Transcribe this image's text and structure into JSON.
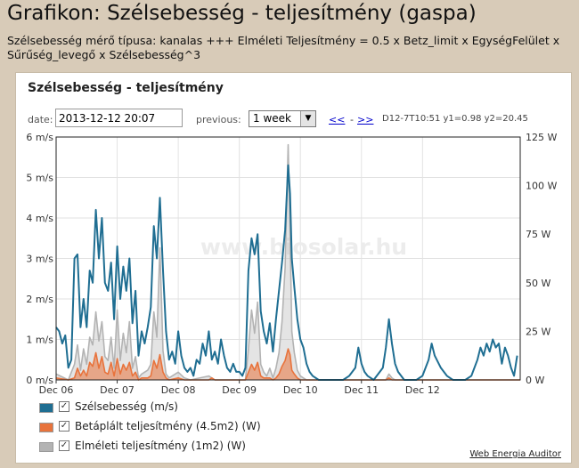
{
  "page": {
    "title": "Grafikon: Szélsebesség - teljesítmény (gaspa)",
    "description": "Szélsebesség mérő típusa: kanalas +++ Elméleti Teljesítmény = 0.5 x Betz_limit x EgységFelület x Sűrűség_levegő x Szélsebesség^3"
  },
  "panel": {
    "title": "Szélsebesség - teljesítmény"
  },
  "controls": {
    "date_label": "date:",
    "date_value": "2013-12-12 20:07",
    "previous_label": "previous:",
    "previous_value": "1 week",
    "prev_link": "<<",
    "separator": "-",
    "next_link": ">>",
    "readout": "D12-7T10:51 y1=0.98 y2=20.45"
  },
  "watermark": "www.biosolar.hu",
  "footer": {
    "link": "Web Energia Auditor"
  },
  "chart_data": {
    "type": "line",
    "y_left": {
      "label": "",
      "min": 0,
      "max": 6,
      "ticks": [
        "0 m/s",
        "1 m/s",
        "2 m/s",
        "3 m/s",
        "4 m/s",
        "5 m/s",
        "6 m/s"
      ]
    },
    "y_right": {
      "label": "",
      "min": 0,
      "max": 125,
      "ticks": [
        "0 W",
        "25 W",
        "50 W",
        "75 W",
        "100 W",
        "125 W"
      ]
    },
    "x_labels": [
      "Dec 06",
      "Dec 07",
      "Dec 08",
      "Dec 09",
      "Dec 10",
      "Dec 11",
      "Dec 12"
    ],
    "x_range": [
      0,
      7.6
    ],
    "grid": true,
    "legend_position": "bottom",
    "series": [
      {
        "name": "Szélsebesség (m/s)",
        "color": "#1f6e92",
        "axis": "left",
        "points": [
          [
            0.0,
            1.3
          ],
          [
            0.05,
            1.2
          ],
          [
            0.1,
            0.9
          ],
          [
            0.15,
            1.1
          ],
          [
            0.2,
            0.3
          ],
          [
            0.25,
            0.5
          ],
          [
            0.3,
            3.0
          ],
          [
            0.35,
            3.1
          ],
          [
            0.4,
            1.3
          ],
          [
            0.45,
            2.0
          ],
          [
            0.5,
            1.3
          ],
          [
            0.55,
            2.7
          ],
          [
            0.6,
            2.4
          ],
          [
            0.65,
            4.2
          ],
          [
            0.7,
            3.0
          ],
          [
            0.75,
            4.0
          ],
          [
            0.8,
            2.4
          ],
          [
            0.85,
            2.2
          ],
          [
            0.9,
            2.9
          ],
          [
            0.95,
            1.5
          ],
          [
            1.0,
            3.3
          ],
          [
            1.05,
            2.0
          ],
          [
            1.1,
            2.8
          ],
          [
            1.15,
            2.2
          ],
          [
            1.2,
            3.0
          ],
          [
            1.25,
            1.4
          ],
          [
            1.3,
            2.2
          ],
          [
            1.35,
            0.6
          ],
          [
            1.4,
            1.2
          ],
          [
            1.45,
            0.9
          ],
          [
            1.5,
            1.3
          ],
          [
            1.55,
            1.8
          ],
          [
            1.6,
            3.8
          ],
          [
            1.65,
            3.0
          ],
          [
            1.7,
            4.5
          ],
          [
            1.75,
            2.7
          ],
          [
            1.8,
            1.2
          ],
          [
            1.85,
            0.5
          ],
          [
            1.9,
            0.7
          ],
          [
            1.95,
            0.4
          ],
          [
            2.0,
            1.2
          ],
          [
            2.05,
            0.6
          ],
          [
            2.1,
            0.3
          ],
          [
            2.15,
            0.2
          ],
          [
            2.2,
            0.3
          ],
          [
            2.25,
            0.1
          ],
          [
            2.3,
            0.5
          ],
          [
            2.35,
            0.4
          ],
          [
            2.4,
            0.9
          ],
          [
            2.45,
            0.6
          ],
          [
            2.5,
            1.2
          ],
          [
            2.55,
            0.5
          ],
          [
            2.6,
            0.7
          ],
          [
            2.65,
            0.4
          ],
          [
            2.7,
            1.0
          ],
          [
            2.75,
            0.6
          ],
          [
            2.8,
            0.3
          ],
          [
            2.85,
            0.2
          ],
          [
            2.9,
            0.4
          ],
          [
            2.95,
            0.2
          ],
          [
            3.0,
            0.2
          ],
          [
            3.05,
            0.1
          ],
          [
            3.1,
            0.3
          ],
          [
            3.15,
            2.7
          ],
          [
            3.2,
            3.5
          ],
          [
            3.25,
            3.1
          ],
          [
            3.3,
            3.6
          ],
          [
            3.35,
            1.7
          ],
          [
            3.4,
            1.2
          ],
          [
            3.45,
            0.9
          ],
          [
            3.5,
            1.4
          ],
          [
            3.55,
            0.7
          ],
          [
            3.6,
            1.5
          ],
          [
            3.65,
            2.2
          ],
          [
            3.7,
            2.9
          ],
          [
            3.75,
            3.7
          ],
          [
            3.8,
            5.3
          ],
          [
            3.83,
            4.6
          ],
          [
            3.86,
            3.0
          ],
          [
            3.9,
            2.3
          ],
          [
            3.95,
            1.5
          ],
          [
            4.0,
            1.0
          ],
          [
            4.05,
            0.8
          ],
          [
            4.1,
            0.4
          ],
          [
            4.15,
            0.2
          ],
          [
            4.2,
            0.1
          ],
          [
            4.3,
            0.0
          ],
          [
            4.5,
            0.0
          ],
          [
            4.7,
            0.0
          ],
          [
            4.8,
            0.1
          ],
          [
            4.9,
            0.3
          ],
          [
            4.95,
            0.8
          ],
          [
            5.0,
            0.4
          ],
          [
            5.05,
            0.2
          ],
          [
            5.1,
            0.1
          ],
          [
            5.2,
            0.0
          ],
          [
            5.35,
            0.3
          ],
          [
            5.4,
            0.8
          ],
          [
            5.45,
            1.5
          ],
          [
            5.5,
            0.9
          ],
          [
            5.55,
            0.4
          ],
          [
            5.6,
            0.2
          ],
          [
            5.7,
            0.0
          ],
          [
            5.9,
            0.0
          ],
          [
            6.0,
            0.1
          ],
          [
            6.1,
            0.5
          ],
          [
            6.15,
            0.9
          ],
          [
            6.2,
            0.6
          ],
          [
            6.3,
            0.3
          ],
          [
            6.4,
            0.1
          ],
          [
            6.5,
            0.0
          ],
          [
            6.7,
            0.0
          ],
          [
            6.8,
            0.1
          ],
          [
            6.9,
            0.5
          ],
          [
            6.95,
            0.8
          ],
          [
            7.0,
            0.6
          ],
          [
            7.05,
            0.9
          ],
          [
            7.1,
            0.7
          ],
          [
            7.15,
            1.0
          ],
          [
            7.2,
            0.8
          ],
          [
            7.25,
            0.9
          ],
          [
            7.3,
            0.4
          ],
          [
            7.35,
            0.8
          ],
          [
            7.4,
            0.6
          ],
          [
            7.45,
            0.3
          ],
          [
            7.5,
            0.1
          ],
          [
            7.55,
            0.6
          ]
        ]
      },
      {
        "name": "Betáplált teljesítmény (4.5m2) (W)",
        "color": "#e8733c",
        "axis": "right",
        "points": [
          [
            0.0,
            1
          ],
          [
            0.2,
            0
          ],
          [
            0.3,
            1
          ],
          [
            0.35,
            6
          ],
          [
            0.4,
            2
          ],
          [
            0.45,
            5
          ],
          [
            0.5,
            2
          ],
          [
            0.55,
            9
          ],
          [
            0.6,
            7
          ],
          [
            0.65,
            14
          ],
          [
            0.7,
            6
          ],
          [
            0.75,
            12
          ],
          [
            0.8,
            4
          ],
          [
            0.85,
            3
          ],
          [
            0.9,
            9
          ],
          [
            0.95,
            2
          ],
          [
            1.0,
            11
          ],
          [
            1.05,
            3
          ],
          [
            1.1,
            8
          ],
          [
            1.15,
            5
          ],
          [
            1.2,
            9
          ],
          [
            1.25,
            2
          ],
          [
            1.3,
            4
          ],
          [
            1.35,
            0
          ],
          [
            1.4,
            1
          ],
          [
            1.5,
            1
          ],
          [
            1.55,
            2
          ],
          [
            1.6,
            10
          ],
          [
            1.65,
            6
          ],
          [
            1.7,
            13
          ],
          [
            1.75,
            4
          ],
          [
            1.8,
            1
          ],
          [
            1.85,
            0
          ],
          [
            2.0,
            1
          ],
          [
            2.1,
            0
          ],
          [
            2.5,
            0
          ],
          [
            2.55,
            1
          ],
          [
            2.6,
            0
          ],
          [
            3.1,
            0
          ],
          [
            3.15,
            4
          ],
          [
            3.2,
            8
          ],
          [
            3.25,
            5
          ],
          [
            3.3,
            9
          ],
          [
            3.35,
            2
          ],
          [
            3.4,
            1
          ],
          [
            3.5,
            1
          ],
          [
            3.55,
            0
          ],
          [
            3.6,
            1
          ],
          [
            3.65,
            3
          ],
          [
            3.7,
            7
          ],
          [
            3.75,
            10
          ],
          [
            3.8,
            16
          ],
          [
            3.83,
            13
          ],
          [
            3.86,
            5
          ],
          [
            3.9,
            3
          ],
          [
            3.95,
            1
          ],
          [
            4.0,
            0
          ],
          [
            5.4,
            0
          ],
          [
            5.45,
            1
          ],
          [
            5.5,
            0
          ],
          [
            7.6,
            0
          ]
        ]
      },
      {
        "name": "Elméleti teljesítmény (1m2) (W)",
        "color": "#b3b3b3",
        "axis": "right",
        "points": [
          [
            0.0,
            3
          ],
          [
            0.2,
            0
          ],
          [
            0.3,
            8
          ],
          [
            0.35,
            18
          ],
          [
            0.4,
            5
          ],
          [
            0.45,
            16
          ],
          [
            0.5,
            8
          ],
          [
            0.55,
            22
          ],
          [
            0.6,
            18
          ],
          [
            0.65,
            35
          ],
          [
            0.7,
            20
          ],
          [
            0.75,
            30
          ],
          [
            0.8,
            12
          ],
          [
            0.85,
            10
          ],
          [
            0.9,
            22
          ],
          [
            0.95,
            6
          ],
          [
            1.0,
            36
          ],
          [
            1.05,
            10
          ],
          [
            1.1,
            24
          ],
          [
            1.15,
            14
          ],
          [
            1.2,
            30
          ],
          [
            1.25,
            6
          ],
          [
            1.3,
            12
          ],
          [
            1.35,
            1
          ],
          [
            1.4,
            3
          ],
          [
            1.5,
            5
          ],
          [
            1.55,
            8
          ],
          [
            1.6,
            35
          ],
          [
            1.65,
            22
          ],
          [
            1.7,
            68
          ],
          [
            1.75,
            15
          ],
          [
            1.8,
            3
          ],
          [
            1.85,
            1
          ],
          [
            1.9,
            2
          ],
          [
            2.0,
            4
          ],
          [
            2.1,
            1
          ],
          [
            2.2,
            0
          ],
          [
            2.5,
            2
          ],
          [
            2.55,
            1
          ],
          [
            2.6,
            0
          ],
          [
            3.1,
            0
          ],
          [
            3.15,
            16
          ],
          [
            3.2,
            36
          ],
          [
            3.25,
            24
          ],
          [
            3.3,
            40
          ],
          [
            3.35,
            8
          ],
          [
            3.4,
            4
          ],
          [
            3.45,
            2
          ],
          [
            3.5,
            6
          ],
          [
            3.55,
            1
          ],
          [
            3.6,
            6
          ],
          [
            3.65,
            14
          ],
          [
            3.7,
            30
          ],
          [
            3.75,
            58
          ],
          [
            3.8,
            121
          ],
          [
            3.83,
            78
          ],
          [
            3.86,
            25
          ],
          [
            3.9,
            14
          ],
          [
            3.95,
            5
          ],
          [
            4.0,
            2
          ],
          [
            4.05,
            1
          ],
          [
            4.1,
            0
          ],
          [
            5.4,
            0
          ],
          [
            5.45,
            3
          ],
          [
            5.5,
            1
          ],
          [
            5.55,
            0
          ],
          [
            7.6,
            0
          ]
        ]
      }
    ]
  }
}
